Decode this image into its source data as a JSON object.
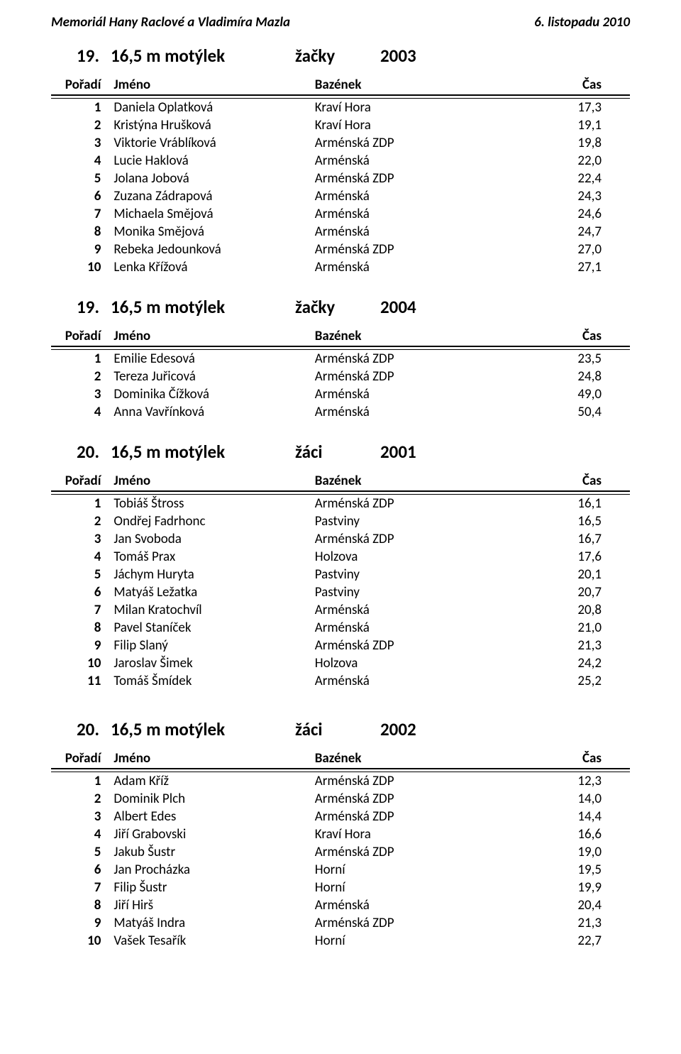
{
  "header": {
    "left": "Memoriál Hany Raclové a Vladimíra Mazla",
    "right": "6. listopadu 2010"
  },
  "table_headers": {
    "rank": "Pořadí",
    "name": "Jméno",
    "pool": "Bazének",
    "time": "Čas"
  },
  "sections": [
    {
      "num": "19.",
      "event": "16,5 m motýlek",
      "cat": "žačky",
      "year": "2003",
      "extra_top": false,
      "rows": [
        {
          "rank": "1",
          "name": "Daniela Oplatková",
          "pool": "Kraví Hora",
          "time": "17,3"
        },
        {
          "rank": "2",
          "name": "Kristýna Hrušková",
          "pool": "Kraví Hora",
          "time": "19,1"
        },
        {
          "rank": "3",
          "name": "Viktorie Vráblíková",
          "pool": "Arménská ZDP",
          "time": "19,8"
        },
        {
          "rank": "4",
          "name": "Lucie Haklová",
          "pool": "Arménská",
          "time": "22,0"
        },
        {
          "rank": "5",
          "name": "Jolana Jobová",
          "pool": "Arménská ZDP",
          "time": "22,4"
        },
        {
          "rank": "6",
          "name": "Zuzana Zádrapová",
          "pool": "Arménská",
          "time": "24,3"
        },
        {
          "rank": "7",
          "name": "Michaela Smějová",
          "pool": "Arménská",
          "time": "24,6"
        },
        {
          "rank": "8",
          "name": "Monika Smějová",
          "pool": "Arménská",
          "time": "24,7"
        },
        {
          "rank": "9",
          "name": "Rebeka Jedounková",
          "pool": "Arménská ZDP",
          "time": "27,0"
        },
        {
          "rank": "10",
          "name": "Lenka Křížová",
          "pool": "Arménská",
          "time": "27,1"
        }
      ]
    },
    {
      "num": "19.",
      "event": "16,5 m motýlek",
      "cat": "žačky",
      "year": "2004",
      "extra_top": false,
      "rows": [
        {
          "rank": "1",
          "name": "Emilie Edesová",
          "pool": "Arménská ZDP",
          "time": "23,5"
        },
        {
          "rank": "2",
          "name": "Tereza Juřicová",
          "pool": "Arménská ZDP",
          "time": "24,8"
        },
        {
          "rank": "3",
          "name": "Dominika Čížková",
          "pool": "Arménská",
          "time": "49,0"
        },
        {
          "rank": "4",
          "name": "Anna Vavřínková",
          "pool": "Arménská",
          "time": "50,4"
        }
      ]
    },
    {
      "num": "20.",
      "event": "16,5 m motýlek",
      "cat": "žáci",
      "year": "2001",
      "extra_top": false,
      "rows": [
        {
          "rank": "1",
          "name": "Tobiáš Štross",
          "pool": "Arménská ZDP",
          "time": "16,1"
        },
        {
          "rank": "2",
          "name": "Ondřej Fadrhonc",
          "pool": "Pastviny",
          "time": "16,5"
        },
        {
          "rank": "3",
          "name": "Jan Svoboda",
          "pool": "Arménská ZDP",
          "time": "16,7"
        },
        {
          "rank": "4",
          "name": "Tomáš Prax",
          "pool": "Holzova",
          "time": "17,6"
        },
        {
          "rank": "5",
          "name": "Jáchym Huryta",
          "pool": "Pastviny",
          "time": "20,1"
        },
        {
          "rank": "6",
          "name": "Matyáš Ležatka",
          "pool": "Pastviny",
          "time": "20,7"
        },
        {
          "rank": "7",
          "name": "Milan Kratochvíl",
          "pool": "Arménská",
          "time": "20,8"
        },
        {
          "rank": "8",
          "name": "Pavel Staníček",
          "pool": "Arménská",
          "time": "21,0"
        },
        {
          "rank": "9",
          "name": "Filip Slaný",
          "pool": "Arménská ZDP",
          "time": "21,3"
        },
        {
          "rank": "10",
          "name": "Jaroslav Šimek",
          "pool": "Holzova",
          "time": "24,2"
        },
        {
          "rank": "11",
          "name": "Tomáš Šmídek",
          "pool": "Arménská",
          "time": "25,2"
        }
      ]
    },
    {
      "num": "20.",
      "event": "16,5 m motýlek",
      "cat": "žáci",
      "year": "2002",
      "extra_top": true,
      "rows": [
        {
          "rank": "1",
          "name": "Adam Kříž",
          "pool": "Arménská ZDP",
          "time": "12,3"
        },
        {
          "rank": "2",
          "name": "Dominik Plch",
          "pool": "Arménská ZDP",
          "time": "14,0"
        },
        {
          "rank": "3",
          "name": "Albert Edes",
          "pool": "Arménská ZDP",
          "time": "14,4"
        },
        {
          "rank": "4",
          "name": "Jiří Grabovski",
          "pool": "Kraví Hora",
          "time": "16,6"
        },
        {
          "rank": "5",
          "name": "Jakub Šustr",
          "pool": "Arménská ZDP",
          "time": "19,0"
        },
        {
          "rank": "6",
          "name": "Jan Procházka",
          "pool": "Horní",
          "time": "19,5"
        },
        {
          "rank": "7",
          "name": "Filip Šustr",
          "pool": "Horní",
          "time": "19,9"
        },
        {
          "rank": "8",
          "name": "Jiří Hirš",
          "pool": "Arménská",
          "time": "20,4"
        },
        {
          "rank": "9",
          "name": "Matyáš Indra",
          "pool": "Arménská ZDP",
          "time": "21,3"
        },
        {
          "rank": "10",
          "name": "Vašek Tesařík",
          "pool": "Horní",
          "time": "22,7"
        }
      ]
    }
  ]
}
